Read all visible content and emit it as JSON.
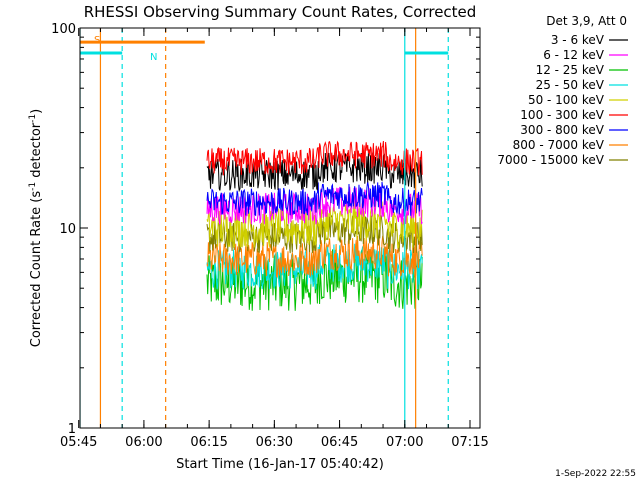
{
  "chart_data": {
    "type": "line",
    "title": "RHESSI Observing Summary Count Rates, Corrected",
    "xlabel": "Start Time (16-Jan-17 05:40:42)",
    "ylabel_main": "Corrected Count Rate (s",
    "ylabel_sup1": "-1",
    "ylabel_mid": " detector",
    "ylabel_sup2": "-1",
    "ylabel_end": ")",
    "yscale": "log",
    "ylim": [
      1,
      100
    ],
    "xlim_minutes": [
      5.3,
      97.3
    ],
    "x_ticks": [
      {
        "minute": 5,
        "label": "05:45"
      },
      {
        "minute": 20,
        "label": "06:00"
      },
      {
        "minute": 35,
        "label": "06:15"
      },
      {
        "minute": 50,
        "label": "06:30"
      },
      {
        "minute": 65,
        "label": "06:45"
      },
      {
        "minute": 80,
        "label": "07:00"
      },
      {
        "minute": 95,
        "label": "07:15"
      }
    ],
    "y_ticks": [
      {
        "value": 1,
        "label": "1"
      },
      {
        "value": 10,
        "label": "10"
      },
      {
        "value": 100,
        "label": "100"
      }
    ],
    "legend_header": "Det 3,9, Att 0",
    "series": [
      {
        "name": "3 - 6 keV",
        "color": "#000000",
        "level": 18.5,
        "jitter": 0.08
      },
      {
        "name": "6 - 12 keV",
        "color": "#ff00ff",
        "level": 12.5,
        "jitter": 0.08
      },
      {
        "name": "12 - 25 keV",
        "color": "#00c000",
        "level": 5.3,
        "jitter": 0.14
      },
      {
        "name": "25 - 50 keV",
        "color": "#00e0e0",
        "level": 6.2,
        "jitter": 0.1
      },
      {
        "name": "50 - 100 keV",
        "color": "#d0d000",
        "level": 10.0,
        "jitter": 0.1
      },
      {
        "name": "100 - 300 keV",
        "color": "#ff0000",
        "level": 21.5,
        "jitter": 0.07
      },
      {
        "name": "300 - 800 keV",
        "color": "#0000ff",
        "level": 13.5,
        "jitter": 0.07
      },
      {
        "name": "800 - 7000 keV",
        "color": "#ff8000",
        "level": 7.0,
        "jitter": 0.09
      },
      {
        "name": "7000 - 15000 keV",
        "color": "#808000",
        "level": 9.0,
        "jitter": 0.08
      }
    ],
    "data_window_minutes": [
      34.5,
      84.0
    ],
    "flags": [
      {
        "label": "S",
        "color": "#ff8000",
        "start": 5.3,
        "end": 34.0,
        "value": 85
      },
      {
        "label": "N",
        "color": "#00e0e0",
        "start": 5.3,
        "end": 15.0,
        "value": 75
      },
      {
        "label": "",
        "color": "#00e0e0",
        "start": 80.0,
        "end": 90.0,
        "value": 75
      }
    ],
    "vlines": [
      {
        "minute": 5.3,
        "color": "#00e0e0",
        "style": "solid"
      },
      {
        "minute": 10.0,
        "color": "#ff8000",
        "style": "solid"
      },
      {
        "minute": 15.0,
        "color": "#00e0e0",
        "style": "dashed"
      },
      {
        "minute": 25.0,
        "color": "#ff8000",
        "style": "dashed"
      },
      {
        "minute": 80.0,
        "color": "#00e0e0",
        "style": "solid"
      },
      {
        "minute": 82.5,
        "color": "#ff8000",
        "style": "solid"
      },
      {
        "minute": 90.0,
        "color": "#00e0e0",
        "style": "dashed"
      }
    ],
    "timestamp": "1-Sep-2022 22:55"
  }
}
